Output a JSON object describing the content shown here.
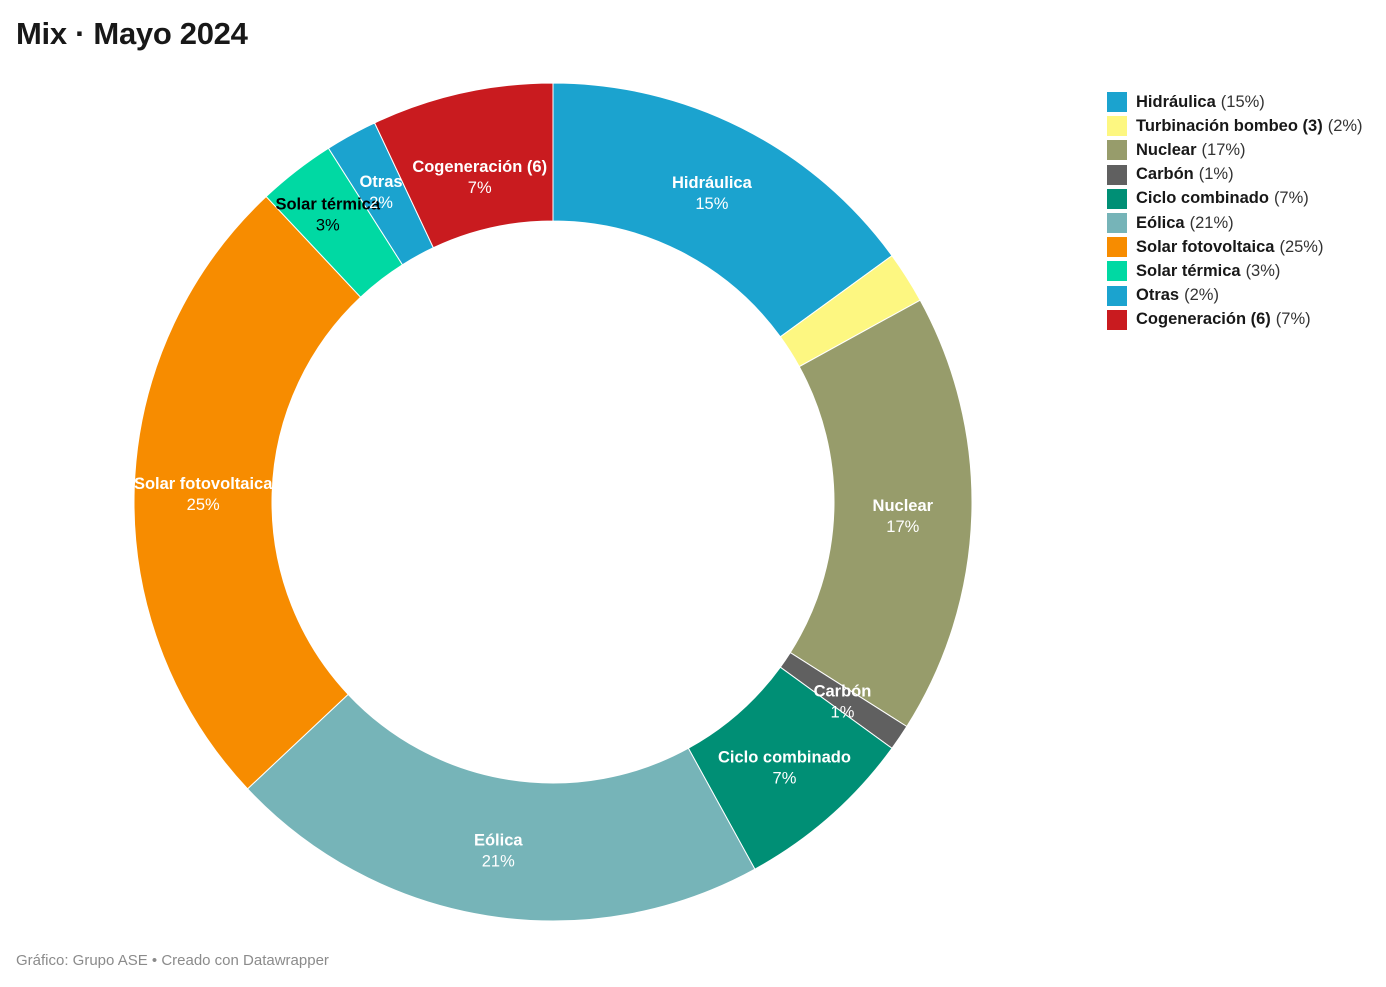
{
  "title": "Mix · Mayo 2024",
  "footer": "Gráfico: Grupo ASE • Creado con Datawrapper",
  "chart_data": {
    "type": "pie",
    "variant": "donut",
    "title": "Mix · Mayo 2024",
    "legend_position": "top-right",
    "slices": [
      {
        "name": "Hidráulica",
        "legend_name": "Hidráulica",
        "value": 15,
        "label": "15%",
        "color": "#1ba3cf",
        "show_label": true,
        "label_color": "#ffffff"
      },
      {
        "name": "Turbinación bombeo (3)",
        "legend_name": "Turbinación bombeo (3)",
        "value": 2,
        "label": "2%",
        "color": "#fdf781",
        "show_label": false,
        "label_color": "#000000"
      },
      {
        "name": "Nuclear",
        "legend_name": "Nuclear",
        "value": 17,
        "label": "17%",
        "color": "#979c6b",
        "show_label": true,
        "label_color": "#ffffff"
      },
      {
        "name": "Carbón",
        "legend_name": "Carbón",
        "value": 1,
        "label": "1%",
        "color": "#606060",
        "show_label": true,
        "label_color": "#ffffff"
      },
      {
        "name": "Ciclo combinado",
        "legend_name": "Ciclo combinado ",
        "value": 7,
        "label": "7%",
        "color": "#008f75",
        "show_label": true,
        "label_color": "#ffffff"
      },
      {
        "name": "Eólica",
        "legend_name": "Eólica",
        "value": 21,
        "label": "21%",
        "color": "#76b4b8",
        "show_label": true,
        "label_color": "#ffffff"
      },
      {
        "name": "Solar fotovoltaica",
        "legend_name": "Solar fotovoltaica",
        "value": 25,
        "label": "25%",
        "color": "#f78c00",
        "show_label": true,
        "label_color": "#ffffff"
      },
      {
        "name": "Solar térmica",
        "legend_name": "Solar térmica",
        "value": 3,
        "label": "3%",
        "color": "#00d9a3",
        "show_label": true,
        "label_color": "#000000"
      },
      {
        "name": "Otras",
        "legend_name": "Otras",
        "value": 2,
        "label": "2%",
        "color": "#1ba3cf",
        "show_label": true,
        "label_color": "#ffffff"
      },
      {
        "name": "Cogeneración (6)",
        "legend_name": "Cogeneración (6)",
        "value": 7,
        "label": "7%",
        "color": "#c91b1f",
        "show_label": true,
        "label_color": "#ffffff"
      }
    ]
  }
}
